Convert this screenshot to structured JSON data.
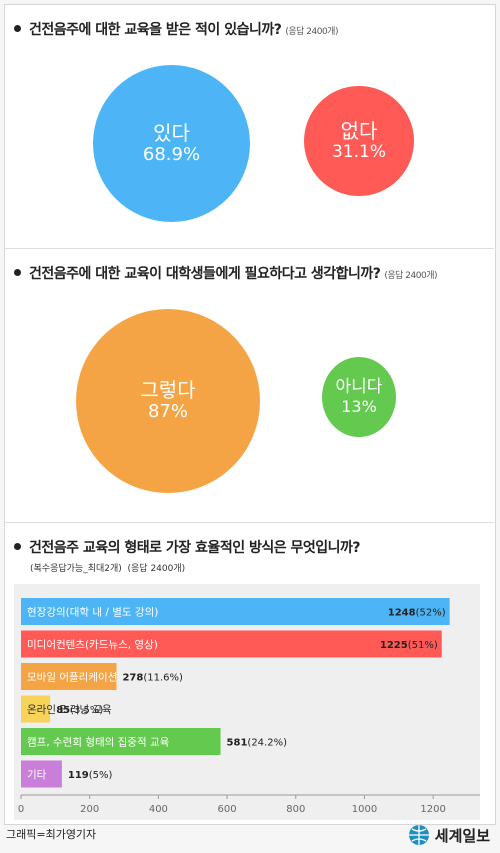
{
  "q1": {
    "question": "건전음주에 대한 교육을 받은 적이 있습니까?",
    "responses": "(응답 2400개)",
    "yes_label": "있다",
    "yes_pct": "68.9%",
    "no_label": "없다",
    "no_pct": "31.1%",
    "yes_color": "#4db5f5",
    "no_color": "#ff5a55"
  },
  "q2": {
    "question": "건전음주에 대한 교육이 대학생들에게 필요하다고 생각합니까?",
    "responses": "(응답 2400개)",
    "yes_label": "그렇다",
    "yes_pct": "87%",
    "no_label": "아니다",
    "no_pct": "13%",
    "yes_color": "#f5a445",
    "no_color": "#64c94f"
  },
  "q3": {
    "question": "건전음주 교육의 형태로 가장 효율적인 방식은 무엇입니까?",
    "note": "(복수응답가능_최대2개)",
    "responses": "(응답 2400개)"
  },
  "chart_data": {
    "type": "bar",
    "orientation": "horizontal",
    "categories": [
      "현장강의(대학 내 / 별도 강의)",
      "미디어컨텐츠(카드뉴스, 영상)",
      "모바일 어플리케이션",
      "온라인 E-러닝 교육",
      "캠프, 수련회 형태의 집중적 교육",
      "기타"
    ],
    "values": [
      1248,
      1225,
      278,
      85,
      581,
      119
    ],
    "value_labels": [
      "1248",
      "1225",
      "278",
      "85",
      "581",
      "119"
    ],
    "pct_labels": [
      "(52%)",
      "(51%)",
      "(11.6%)",
      "(3.5%)",
      "(24.2%)",
      "(5%)"
    ],
    "colors": [
      "#4db5f5",
      "#ff5a55",
      "#f5a445",
      "#f7d35a",
      "#64c94f",
      "#c97fd9"
    ],
    "xlim": [
      0,
      1300
    ],
    "xticks": [
      "0",
      "200",
      "400",
      "600",
      "800",
      "1000",
      "1200"
    ],
    "grid": false
  },
  "footer": {
    "credit": "그래픽=최가영기자",
    "logo": "세계일보"
  }
}
